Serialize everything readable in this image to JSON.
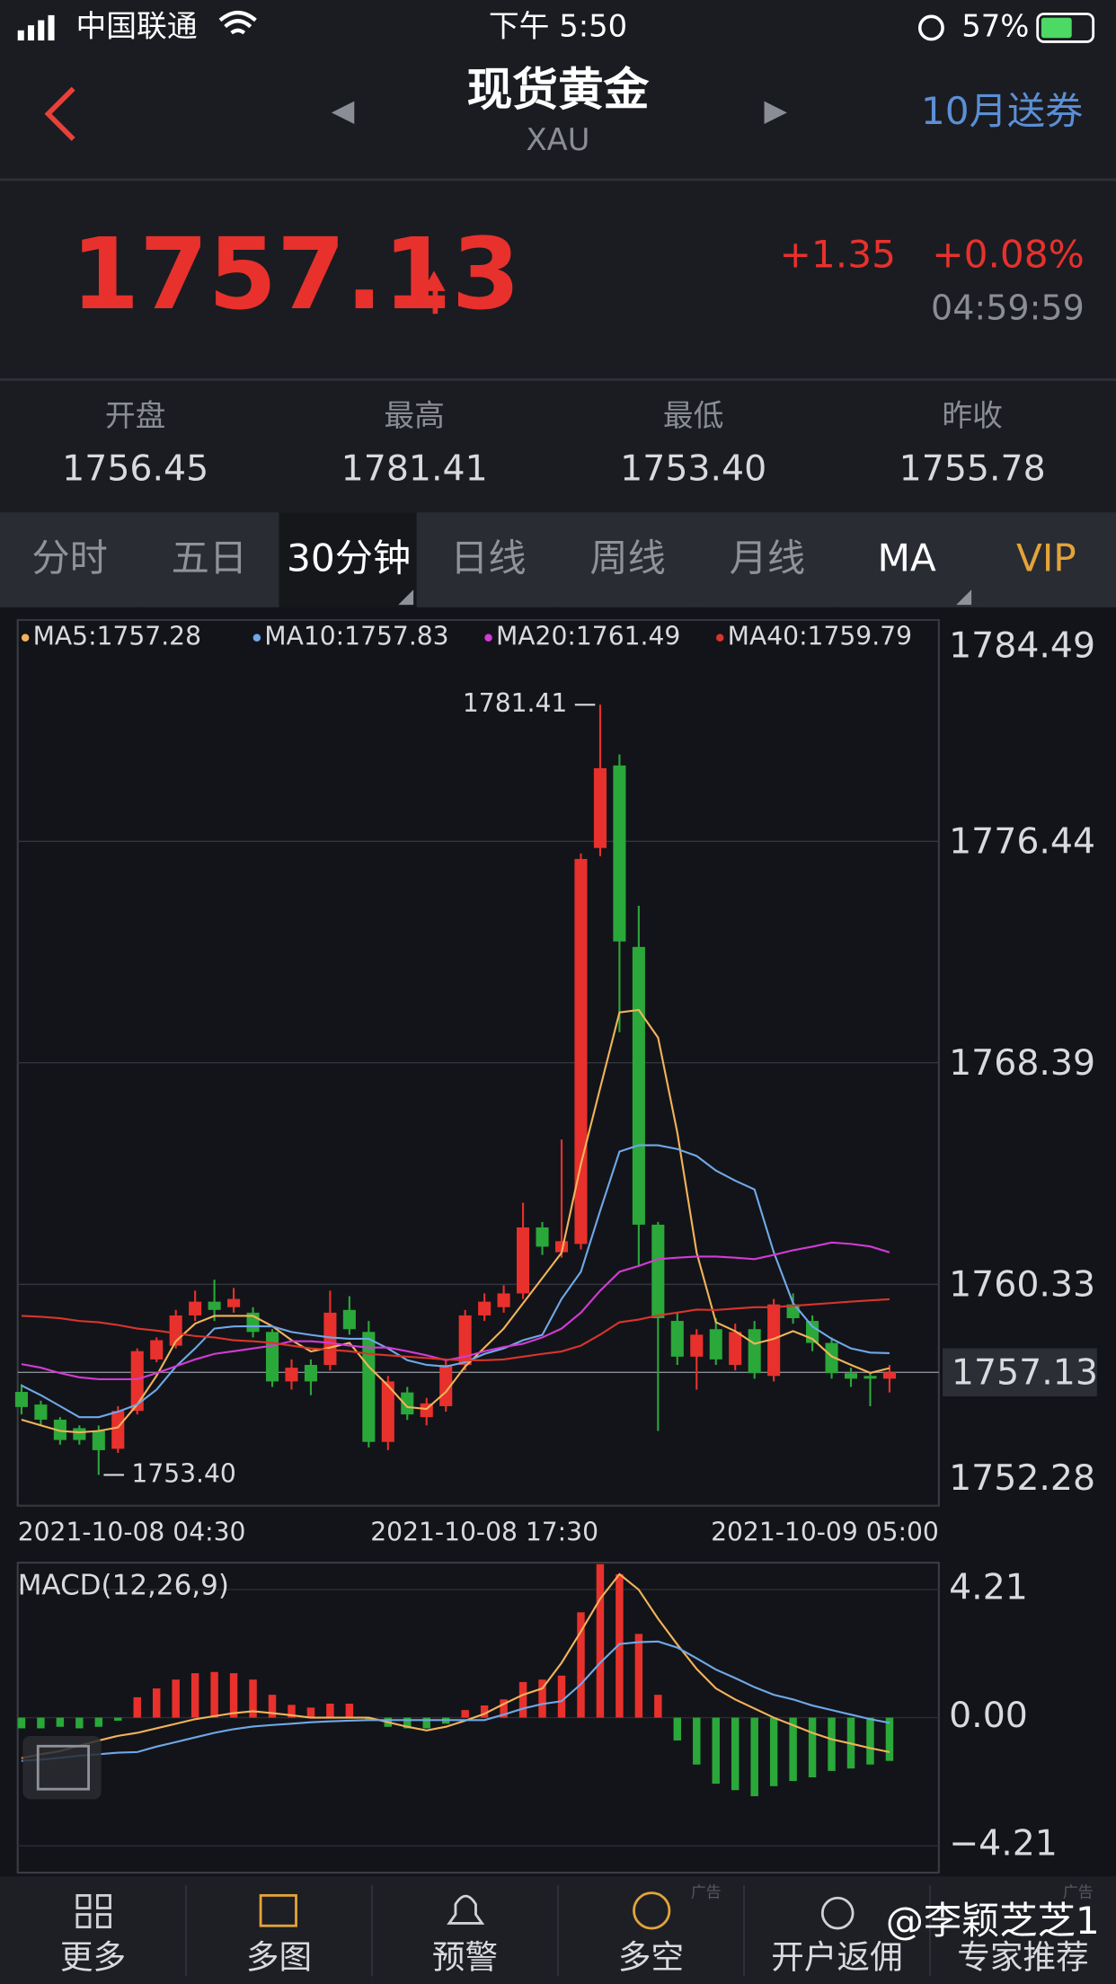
{
  "status_bar": {
    "carrier": "中国联通",
    "time": "下午 5:50",
    "battery": "57%"
  },
  "header": {
    "title": "现货黄金",
    "subtitle": "XAU",
    "promo": "10月送券"
  },
  "quote": {
    "price": "1757.13",
    "change": "+1.35",
    "change_percent": "+0.08%",
    "time": "04:59:59"
  },
  "stats": [
    {
      "label": "开盘",
      "value": "1756.45"
    },
    {
      "label": "最高",
      "value": "1781.41"
    },
    {
      "label": "最低",
      "value": "1753.40"
    },
    {
      "label": "昨收",
      "value": "1755.78"
    }
  ],
  "tabs": [
    "分时",
    "五日",
    "30分钟",
    "日线",
    "周线",
    "月线",
    "MA",
    "VIP"
  ],
  "chart_data": [
    {
      "type": "candlestick",
      "categories": [
        "2021-10-08 04:30",
        null,
        null,
        null,
        null,
        null,
        null,
        null,
        null,
        null,
        null,
        null,
        null,
        null,
        null,
        null,
        null,
        null,
        null,
        null,
        null,
        null,
        null,
        null,
        "2021-10-08 17:30",
        null,
        null,
        null,
        null,
        null,
        null,
        null,
        null,
        null,
        null,
        null,
        null,
        null,
        null,
        null,
        null,
        null,
        null,
        null,
        null,
        "2021-10-09 05:00"
      ],
      "ohlc": {
        "open": [
          1756.42,
          1755.96,
          1755.41,
          1755.1,
          1755.0,
          1754.35,
          1755.73,
          1757.6,
          1758.1,
          1759.2,
          1759.7,
          1759.5,
          1759.3,
          1758.6,
          1756.8,
          1757.4,
          1757.4,
          1759.4,
          1758.6,
          1754.6,
          1756.4,
          1755.5,
          1755.9,
          1757.4,
          1759.2,
          1759.5,
          1760.0,
          1762.4,
          1761.5,
          1761.8,
          1776.2,
          1779.2,
          1772.6,
          1762.5,
          1759.0,
          1757.7,
          1758.7,
          1757.4,
          1758.7,
          1757.0,
          1759.6,
          1759.0,
          1758.2,
          1757.1,
          1757.0,
          1756.9
        ],
        "high": [
          1756.7,
          1756.1,
          1755.5,
          1755.2,
          1755.2,
          1755.9,
          1758.0,
          1758.4,
          1759.4,
          1760.1,
          1760.5,
          1760.2,
          1759.5,
          1758.7,
          1757.6,
          1757.6,
          1760.1,
          1759.9,
          1759.0,
          1757.0,
          1756.6,
          1756.2,
          1757.6,
          1759.4,
          1760.0,
          1760.3,
          1763.3,
          1762.6,
          1765.6,
          1776.0,
          1781.41,
          1779.6,
          1774.1,
          1762.6,
          1759.3,
          1758.7,
          1759.1,
          1758.9,
          1759.0,
          1759.8,
          1760.0,
          1759.2,
          1758.4,
          1757.3,
          1757.1,
          1757.4
        ],
        "low": [
          1755.6,
          1755.2,
          1754.5,
          1754.5,
          1753.4,
          1754.2,
          1755.6,
          1757.5,
          1758.0,
          1759.0,
          1759.0,
          1759.3,
          1758.4,
          1756.6,
          1756.5,
          1756.3,
          1757.2,
          1758.5,
          1754.4,
          1754.3,
          1755.4,
          1755.2,
          1755.7,
          1757.2,
          1759.0,
          1759.3,
          1759.8,
          1761.4,
          1761.3,
          1761.6,
          1775.9,
          1769.5,
          1761.0,
          1755.0,
          1757.4,
          1756.5,
          1757.4,
          1757.2,
          1756.9,
          1756.8,
          1758.9,
          1757.9,
          1756.9,
          1756.6,
          1755.9,
          1756.4
        ],
        "close": [
          1755.87,
          1755.41,
          1754.67,
          1754.67,
          1754.3,
          1755.73,
          1757.9,
          1758.3,
          1759.2,
          1759.7,
          1759.4,
          1759.8,
          1758.6,
          1756.8,
          1757.3,
          1756.8,
          1759.3,
          1758.7,
          1754.6,
          1756.8,
          1755.6,
          1756.0,
          1757.4,
          1759.2,
          1759.7,
          1760.0,
          1762.4,
          1761.7,
          1761.9,
          1775.8,
          1779.1,
          1772.8,
          1762.5,
          1759.1,
          1757.7,
          1758.5,
          1757.6,
          1758.6,
          1757.1,
          1759.6,
          1759.1,
          1758.2,
          1757.1,
          1756.9,
          1756.9,
          1757.13
        ]
      },
      "up_color": "#e8312c",
      "down_color": "#2aa83a",
      "lines": [
        {
          "name": "MA5:1757.28",
          "color": "#f2b35a",
          "values": [
            1755.41,
            1755.2,
            1755.0,
            1754.95,
            1755.0,
            1755.13,
            1755.96,
            1757.0,
            1758.26,
            1758.9,
            1759.18,
            1759.18,
            1759.18,
            1758.81,
            1758.3,
            1757.89,
            1758.03,
            1758.2,
            1757.34,
            1756.65,
            1755.87,
            1755.8,
            1756.42,
            1757.34,
            1758.03,
            1758.72,
            1759.64,
            1760.56,
            1761.48,
            1764.7,
            1767.46,
            1770.22,
            1770.31,
            1769.3,
            1765.85,
            1761.48,
            1758.95,
            1758.63,
            1758.17,
            1758.35,
            1758.63,
            1758.35,
            1757.71,
            1757.4,
            1757.11,
            1757.28
          ]
        },
        {
          "name": "MA10:1757.83",
          "color": "#6fa8e8",
          "values": [
            1756.65,
            1756.3,
            1755.9,
            1755.5,
            1755.5,
            1755.7,
            1755.96,
            1756.5,
            1757.34,
            1758.0,
            1758.72,
            1758.8,
            1758.81,
            1758.8,
            1758.6,
            1758.49,
            1758.4,
            1758.35,
            1758.35,
            1758.0,
            1757.57,
            1757.4,
            1757.34,
            1757.5,
            1757.8,
            1758.0,
            1758.3,
            1758.49,
            1759.8,
            1760.79,
            1763.0,
            1765.16,
            1765.39,
            1765.39,
            1765.25,
            1765.0,
            1764.47,
            1764.1,
            1763.78,
            1761.5,
            1759.64,
            1758.8,
            1758.35,
            1758.0,
            1757.85,
            1757.83
          ]
        },
        {
          "name": "MA20:1761.49",
          "color": "#d23bd6",
          "values": [
            1757.43,
            1757.3,
            1757.1,
            1756.95,
            1756.88,
            1756.88,
            1756.88,
            1757.1,
            1757.35,
            1757.6,
            1757.8,
            1757.9,
            1758.0,
            1758.1,
            1758.26,
            1758.26,
            1758.2,
            1758.1,
            1758.03,
            1758.03,
            1757.9,
            1757.75,
            1757.57,
            1757.7,
            1757.9,
            1758.05,
            1758.17,
            1758.4,
            1758.72,
            1759.3,
            1760.1,
            1760.79,
            1761.0,
            1761.25,
            1761.3,
            1761.34,
            1761.34,
            1761.3,
            1761.25,
            1761.4,
            1761.57,
            1761.7,
            1761.85,
            1761.8,
            1761.71,
            1761.49
          ]
        },
        {
          "name": "MA40:1759.79",
          "color": "#d9352c",
          "values": [
            1759.18,
            1759.15,
            1759.1,
            1759.0,
            1758.95,
            1758.85,
            1758.72,
            1758.65,
            1758.55,
            1758.45,
            1758.4,
            1758.3,
            1758.26,
            1758.2,
            1758.1,
            1758.0,
            1757.95,
            1757.9,
            1757.8,
            1757.75,
            1757.7,
            1757.65,
            1757.6,
            1757.57,
            1757.57,
            1757.6,
            1757.7,
            1757.8,
            1757.89,
            1758.1,
            1758.5,
            1758.95,
            1759.05,
            1759.2,
            1759.3,
            1759.41,
            1759.4,
            1759.45,
            1759.5,
            1759.5,
            1759.55,
            1759.6,
            1759.65,
            1759.7,
            1759.75,
            1759.79
          ]
        }
      ],
      "ylim": [
        1752.28,
        1784.49
      ],
      "yticks": [
        1784.49,
        1776.44,
        1768.39,
        1760.33,
        1752.28
      ],
      "grid": true,
      "last": {
        "value": 1757.13,
        "label": "1757.13"
      },
      "high_label": "1781.41",
      "low_label": "1753.40"
    },
    {
      "type": "macd",
      "title": "MACD(12,26,9)",
      "values": [
        -0.35,
        -0.35,
        -0.3,
        -0.35,
        -0.3,
        -0.1,
        0.67,
        0.96,
        1.25,
        1.46,
        1.5,
        1.46,
        1.25,
        0.75,
        0.42,
        0.33,
        0.46,
        0.46,
        -0.05,
        -0.3,
        -0.35,
        -0.35,
        -0.2,
        0.25,
        0.4,
        0.6,
        1.17,
        1.25,
        1.38,
        3.46,
        5.04,
        4.71,
        2.75,
        0.75,
        -0.75,
        -1.54,
        -2.17,
        -2.38,
        -2.58,
        -2.25,
        -2.08,
        -1.96,
        -1.75,
        -1.67,
        -1.54,
        -1.42
      ],
      "up_color": "#e8312c",
      "down_color": "#2aa83a",
      "lines": [
        {
          "color": "#f2b35a",
          "values": [
            -1.33,
            -1.2,
            -1.1,
            -0.92,
            -0.75,
            -0.6,
            -0.5,
            -0.35,
            -0.2,
            -0.05,
            0.05,
            0.15,
            0.21,
            0.15,
            0.08,
            0.0,
            0.0,
            0.0,
            0.0,
            -0.15,
            -0.3,
            -0.42,
            -0.3,
            -0.1,
            0.13,
            0.45,
            0.75,
            0.96,
            1.8,
            2.83,
            3.9,
            4.71,
            4.2,
            3.25,
            2.4,
            1.6,
            0.96,
            0.6,
            0.3,
            0.0,
            -0.25,
            -0.5,
            -0.71,
            -0.85,
            -1.0,
            -1.13
          ]
        },
        {
          "color": "#6fa8e8",
          "values": [
            -1.42,
            -1.38,
            -1.32,
            -1.25,
            -1.2,
            -1.15,
            -1.13,
            -0.95,
            -0.8,
            -0.65,
            -0.5,
            -0.38,
            -0.29,
            -0.24,
            -0.2,
            -0.15,
            -0.12,
            -0.1,
            -0.08,
            -0.08,
            -0.08,
            -0.08,
            -0.08,
            -0.08,
            -0.08,
            0.1,
            0.3,
            0.45,
            0.54,
            1.1,
            1.8,
            2.42,
            2.48,
            2.5,
            2.3,
            1.95,
            1.58,
            1.3,
            1.0,
            0.75,
            0.6,
            0.4,
            0.25,
            0.1,
            -0.05,
            -0.17
          ]
        }
      ],
      "ylim": [
        -5.09,
        5.09
      ],
      "yticks": [
        4.21,
        {
          "value": 0,
          "label": "0.00"
        },
        {
          "value": -4.21,
          "label": "−4.21"
        }
      ],
      "grid": true
    }
  ],
  "nav": [
    "更多",
    "多图",
    "预警",
    "多空",
    "开户返佣",
    "专家推荐"
  ],
  "ad_labels": [
    "广告",
    "广告"
  ],
  "watermark": "@李颖芝芝1"
}
